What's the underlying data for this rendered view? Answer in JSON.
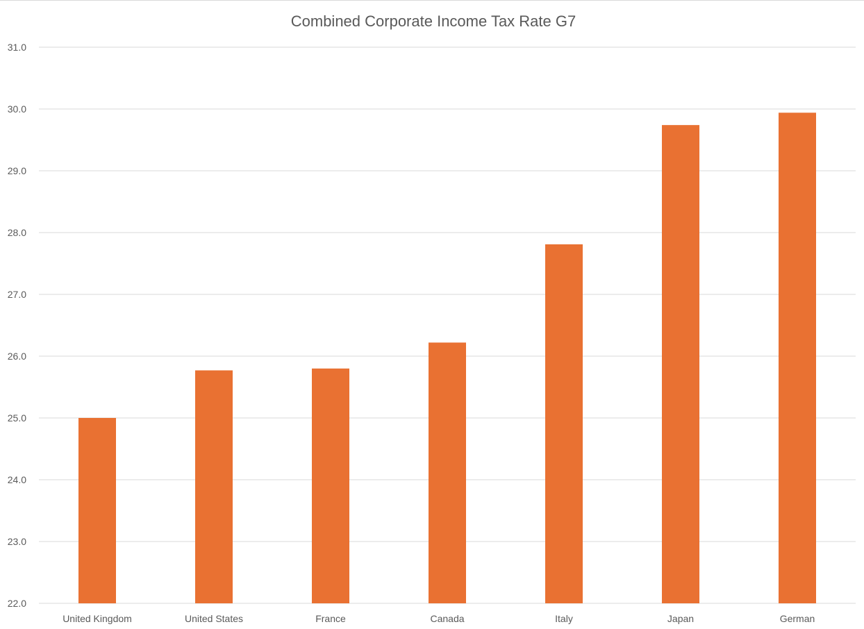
{
  "chart_data": {
    "type": "bar",
    "title": "Combined Corporate Income Tax Rate G7",
    "xlabel": "",
    "ylabel": "",
    "categories": [
      "United Kingdom",
      "United States",
      "France",
      "Canada",
      "Italy",
      "Japan",
      "German"
    ],
    "values": [
      25.0,
      25.77,
      25.8,
      26.22,
      27.81,
      29.74,
      29.94
    ],
    "ylim": [
      22.0,
      31.0
    ],
    "yticks": [
      "22.0",
      "23.0",
      "24.0",
      "25.0",
      "26.0",
      "27.0",
      "28.0",
      "29.0",
      "30.0",
      "31.0"
    ],
    "grid": true,
    "legend": "none",
    "bar_color": "#E97132"
  }
}
